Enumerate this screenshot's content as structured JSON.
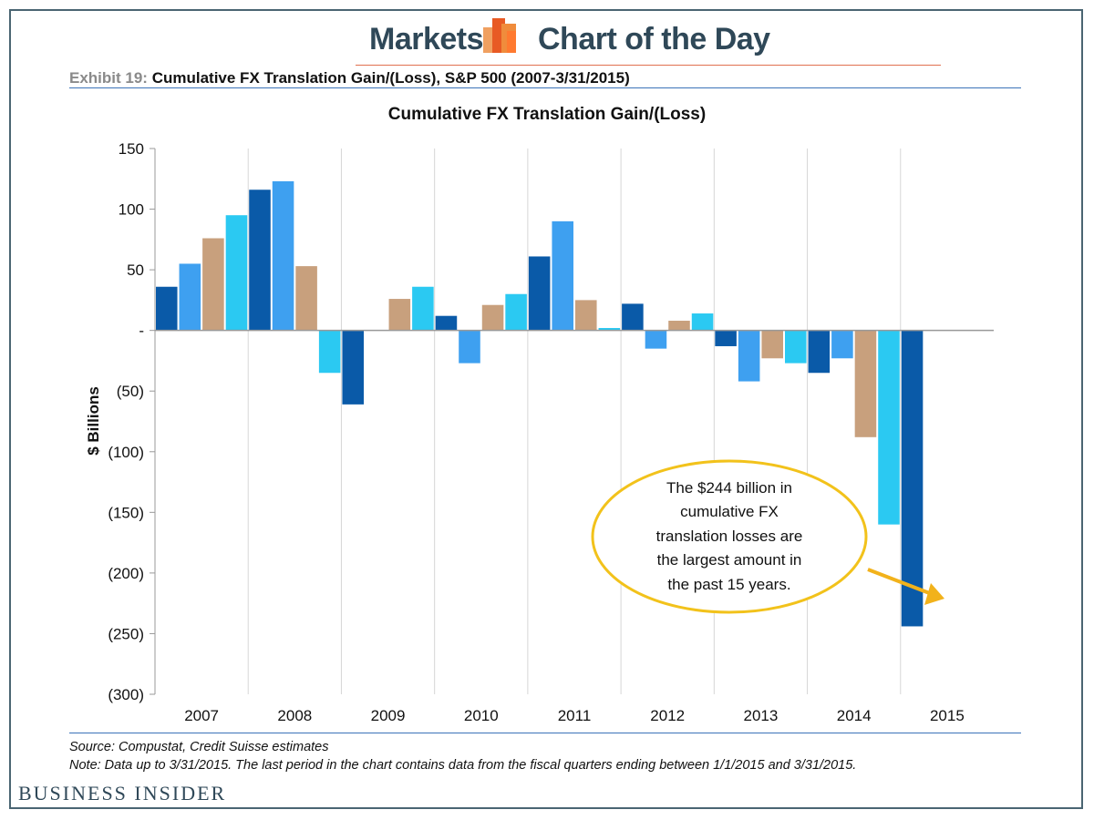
{
  "header": {
    "markets": "Markets",
    "chart_of_day": "Chart of the Day",
    "exhibit_label": "Exhibit 19:",
    "exhibit_title": "Cumulative FX Translation Gain/(Loss), S&P 500 (2007-3/31/2015)"
  },
  "footer": {
    "source": "Source: Compustat, Credit Suisse estimates",
    "note": "Note: Data up to 3/31/2015. The last period in the chart contains data from the fiscal quarters ending between 1/1/2015 and 3/31/2015.",
    "brand": "BUSINESS INSIDER"
  },
  "callout": {
    "lines": [
      "The $244 billion in",
      "cumulative FX",
      "translation losses are",
      "the largest amount in",
      "the past 15 years."
    ]
  },
  "colors": {
    "dark_blue": "#0a5aa8",
    "medium_blue": "#3ea0f0",
    "tan": "#c8a07d",
    "cyan": "#2bc9f2",
    "callout_border": "#f2c21b",
    "arrow": "#f2b21b"
  },
  "chart_data": {
    "type": "bar",
    "title": "Cumulative FX Translation Gain/(Loss)",
    "xlabel": "",
    "ylabel": "$ Billions",
    "ylim": [
      -300,
      150
    ],
    "yticks": [
      150,
      100,
      50,
      0,
      -50,
      -100,
      -150,
      -200,
      -250,
      -300
    ],
    "ytick_labels": [
      "150",
      "100",
      "50",
      "-",
      "(50)",
      "(100)",
      "(150)",
      "(200)",
      "(250)",
      "(300)"
    ],
    "categories": [
      "2007",
      "2008",
      "2009",
      "2010",
      "2011",
      "2012",
      "2013",
      "2014",
      "2015"
    ],
    "quarters": [
      {
        "year": "2007",
        "value": 36,
        "color": "dark_blue"
      },
      {
        "year": "2007",
        "value": 55,
        "color": "medium_blue"
      },
      {
        "year": "2007",
        "value": 76,
        "color": "tan"
      },
      {
        "year": "2007",
        "value": 95,
        "color": "cyan"
      },
      {
        "year": "2008",
        "value": 116,
        "color": "dark_blue"
      },
      {
        "year": "2008",
        "value": 123,
        "color": "medium_blue"
      },
      {
        "year": "2008",
        "value": 53,
        "color": "tan"
      },
      {
        "year": "2008",
        "value": -35,
        "color": "cyan"
      },
      {
        "year": "2009",
        "value": -61,
        "color": "dark_blue"
      },
      {
        "year": "2009",
        "value": 0,
        "color": "medium_blue"
      },
      {
        "year": "2009",
        "value": 26,
        "color": "tan"
      },
      {
        "year": "2009",
        "value": 36,
        "color": "cyan"
      },
      {
        "year": "2010",
        "value": 12,
        "color": "dark_blue"
      },
      {
        "year": "2010",
        "value": -27,
        "color": "medium_blue"
      },
      {
        "year": "2010",
        "value": 21,
        "color": "tan"
      },
      {
        "year": "2010",
        "value": 30,
        "color": "cyan"
      },
      {
        "year": "2011",
        "value": 61,
        "color": "dark_blue"
      },
      {
        "year": "2011",
        "value": 90,
        "color": "medium_blue"
      },
      {
        "year": "2011",
        "value": 25,
        "color": "tan"
      },
      {
        "year": "2011",
        "value": 2,
        "color": "cyan"
      },
      {
        "year": "2012",
        "value": 22,
        "color": "dark_blue"
      },
      {
        "year": "2012",
        "value": -15,
        "color": "medium_blue"
      },
      {
        "year": "2012",
        "value": 8,
        "color": "tan"
      },
      {
        "year": "2012",
        "value": 14,
        "color": "cyan"
      },
      {
        "year": "2013",
        "value": -13,
        "color": "dark_blue"
      },
      {
        "year": "2013",
        "value": -42,
        "color": "medium_blue"
      },
      {
        "year": "2013",
        "value": -23,
        "color": "tan"
      },
      {
        "year": "2013",
        "value": -27,
        "color": "cyan"
      },
      {
        "year": "2014",
        "value": -35,
        "color": "dark_blue"
      },
      {
        "year": "2014",
        "value": -23,
        "color": "medium_blue"
      },
      {
        "year": "2014",
        "value": -88,
        "color": "tan"
      },
      {
        "year": "2014",
        "value": -160,
        "color": "cyan"
      },
      {
        "year": "2015",
        "value": -244,
        "color": "dark_blue"
      }
    ]
  }
}
